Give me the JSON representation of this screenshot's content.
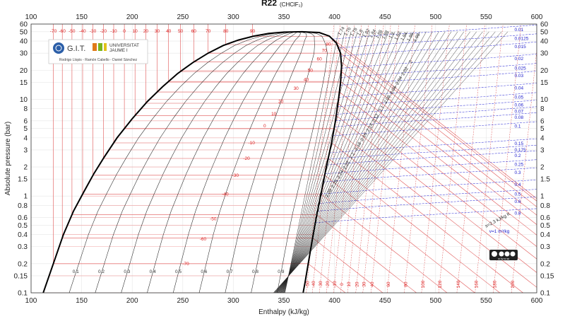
{
  "chart_data": {
    "type": "line",
    "title": "R22",
    "subtitle": "(CHClF₂)",
    "xlabel": "Enthalpy (kJ/kg)",
    "ylabel": "Absolute pressure (bar)",
    "xlim": [
      100,
      600
    ],
    "ylim": [
      0.1,
      60
    ],
    "y_scale": "log",
    "x_ticks": [
      100,
      150,
      200,
      250,
      300,
      350,
      400,
      450,
      500,
      550,
      600
    ],
    "y_ticks": [
      {
        "v": 0.1,
        "label": "0.1"
      },
      {
        "v": 0.15,
        "label": "0.15"
      },
      {
        "v": 0.2,
        "label": "0.2"
      },
      {
        "v": 0.3,
        "label": "0.3"
      },
      {
        "v": 0.4,
        "label": "0.4"
      },
      {
        "v": 0.5,
        "label": "0.5"
      },
      {
        "v": 0.6,
        "label": "0.6"
      },
      {
        "v": 0.8,
        "label": "0.8"
      },
      {
        "v": 1,
        "label": "1"
      },
      {
        "v": 1.5,
        "label": "1.5"
      },
      {
        "v": 2,
        "label": "2"
      },
      {
        "v": 3,
        "label": "3"
      },
      {
        "v": 4,
        "label": "4"
      },
      {
        "v": 5,
        "label": "5"
      },
      {
        "v": 6,
        "label": "6"
      },
      {
        "v": 8,
        "label": "8"
      },
      {
        "v": 10,
        "label": "10"
      },
      {
        "v": 15,
        "label": "15"
      },
      {
        "v": 20,
        "label": "20"
      },
      {
        "v": 30,
        "label": "30"
      },
      {
        "v": 40,
        "label": "40"
      },
      {
        "v": 50,
        "label": "50"
      },
      {
        "v": 60,
        "label": "60"
      }
    ],
    "grid": true,
    "saturation_dome": {
      "liquid": [
        [
          112,
          0.1
        ],
        [
          122,
          0.2
        ],
        [
          132,
          0.4
        ],
        [
          142,
          0.7
        ],
        [
          152,
          1.1
        ],
        [
          162,
          1.7
        ],
        [
          172,
          2.5
        ],
        [
          185,
          4
        ],
        [
          200,
          6.3
        ],
        [
          215,
          9.5
        ],
        [
          230,
          13.5
        ],
        [
          245,
          18.5
        ],
        [
          260,
          24
        ],
        [
          275,
          30
        ],
        [
          290,
          36
        ],
        [
          305,
          41
        ],
        [
          320,
          45
        ],
        [
          335,
          48
        ],
        [
          350,
          49.5
        ],
        [
          368,
          49.9
        ]
      ],
      "vapor": [
        [
          368,
          49.9
        ],
        [
          385,
          49
        ],
        [
          395,
          45
        ],
        [
          402,
          38
        ],
        [
          406,
          30
        ],
        [
          407,
          22
        ],
        [
          406,
          15
        ],
        [
          404,
          10
        ],
        [
          401,
          6
        ],
        [
          397,
          3.5
        ],
        [
          392,
          2
        ],
        [
          387,
          1.1
        ],
        [
          382,
          0.6
        ],
        [
          378,
          0.35
        ],
        [
          374,
          0.2
        ],
        [
          371,
          0.13
        ],
        [
          369,
          0.1
        ]
      ]
    },
    "isotherms_celsius": [
      -70,
      -60,
      -50,
      -40,
      -30,
      -20,
      -10,
      0,
      10,
      20,
      30,
      40,
      50,
      60,
      70,
      80,
      90
    ],
    "isotherm_top_labels": [
      "-70",
      "-60",
      "-50",
      "-40",
      "-30",
      "-20",
      "-10",
      "0",
      "10",
      "20",
      "30",
      "40",
      "50",
      "60",
      "70",
      "80",
      "90"
    ],
    "isotherm_saturation_pressures": [
      0.2,
      0.37,
      0.64,
      1.05,
      1.64,
      2.45,
      3.55,
      4.98,
      6.8,
      9.1,
      11.9,
      15.3,
      19.4,
      24.3,
      30,
      36.8,
      44.7
    ],
    "isotherm_dome_labels": [
      {
        "label": "-70",
        "h": 253,
        "p": 0.2
      },
      {
        "label": "-60",
        "h": 270,
        "p": 0.36
      },
      {
        "label": "-50",
        "h": 280,
        "p": 0.58
      },
      {
        "label": "-40",
        "h": 292,
        "p": 1.05
      },
      {
        "label": "-30",
        "h": 302,
        "p": 1.64
      },
      {
        "label": "-20",
        "h": 313,
        "p": 2.45
      },
      {
        "label": "-10",
        "h": 318,
        "p": 3.55
      },
      {
        "label": "0",
        "h": 331,
        "p": 5.3
      },
      {
        "label": "10",
        "h": 340,
        "p": 7.1
      },
      {
        "label": "20",
        "h": 347,
        "p": 9.5
      },
      {
        "label": "30",
        "h": 362,
        "p": 13
      },
      {
        "label": "40",
        "h": 372,
        "p": 16
      },
      {
        "label": "50",
        "h": 376,
        "p": 20
      },
      {
        "label": "60",
        "h": 385,
        "p": 26
      },
      {
        "label": "70",
        "h": 390,
        "p": 32
      },
      {
        "label": "80",
        "h": 394,
        "p": 37
      }
    ],
    "isotherm_bottom_labels": [
      "-50",
      "-40",
      "-30",
      "-20",
      "-10",
      "0",
      "10",
      "20",
      "30",
      "40",
      "60",
      "80",
      "100",
      "120",
      "140",
      "160",
      "180",
      "200"
    ],
    "isotherm_bottom_h": [
      372,
      378,
      385,
      392,
      399,
      406,
      413,
      421,
      428,
      436,
      452,
      469,
      486,
      503,
      521,
      539,
      557,
      575
    ],
    "quality_labels": [
      "0.1",
      "0.2",
      "0.3",
      "0.4",
      "0.5",
      "0.6",
      "0.7",
      "0.8",
      "0.9"
    ],
    "isentrope_labels": [
      "1.74",
      "1.76",
      "1.78",
      "1.8",
      "1.82",
      "1.84",
      "1.86",
      "1.88",
      "1.9",
      "1.92",
      "1.94",
      "1.96",
      "1.98",
      "2",
      "2.02",
      "2.04",
      "2.06",
      "2.08",
      "2.1",
      "2.12",
      "2.14",
      "2.16",
      "2.18",
      "2.2",
      "2.22",
      "2.24",
      "2.26",
      "2.28"
    ],
    "isentrope_unit_label": "s=2.3 kJ/kg K",
    "isochores": [
      {
        "label": "0.01",
        "p": 42
      },
      {
        "label": "0.0125",
        "p": 34
      },
      {
        "label": "0.015",
        "p": 28
      },
      {
        "label": "0.02",
        "p": 21
      },
      {
        "label": "0.025",
        "p": 16.8
      },
      {
        "label": "0.03",
        "p": 14
      },
      {
        "label": "0.04",
        "p": 10.5
      },
      {
        "label": "0.05",
        "p": 8.4
      },
      {
        "label": "0.06",
        "p": 7
      },
      {
        "label": "0.07",
        "p": 6
      },
      {
        "label": "0.08",
        "p": 5.2
      },
      {
        "label": "0.1",
        "p": 4.2
      },
      {
        "label": "0.15",
        "p": 2.8
      },
      {
        "label": "0.175",
        "p": 2.4
      },
      {
        "label": "0.2",
        "p": 2.1
      },
      {
        "label": "0.25",
        "p": 1.7
      },
      {
        "label": "0.3",
        "p": 1.4
      },
      {
        "label": "0.4",
        "p": 1.05
      },
      {
        "label": "0.5",
        "p": 0.84
      },
      {
        "label": "0.6",
        "p": 0.7
      },
      {
        "label": "0.8",
        "p": 0.53
      }
    ],
    "isochore_unit_label": "v=1 m³/kg",
    "isochore_unit_p": 0.42
  },
  "logo": {
    "group": "G.I.T.",
    "university_line1": "UNIVERSITAT",
    "university_line2": "JAUME I",
    "authors": "Rodrigo Llopis - Ramón Cabello - Daniel Sánchez"
  },
  "license_badge": "cc by nc sa",
  "colors": {
    "isotherm": "#e05555",
    "isochore": "#3a3ad8",
    "isentrope": "#222222",
    "quality": "#222222",
    "dome": "#000000",
    "grid": "#e6e6e6"
  }
}
